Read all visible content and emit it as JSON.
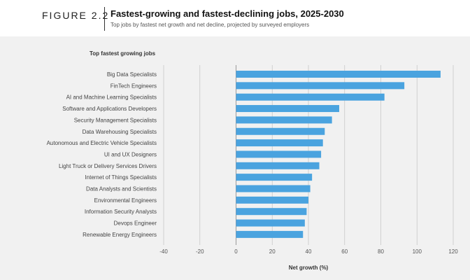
{
  "figure_label": "FIGURE 2.2",
  "title": "Fastest-growing and fastest-declining jobs, 2025-2030",
  "subtitle": "Top jobs by fastest net growth and net decline, projected by surveyed employers",
  "chart_data": {
    "type": "bar",
    "orientation": "horizontal",
    "panel_title": "Top fastest growing jobs",
    "xlabel": "Net growth (%)",
    "ylabel": "",
    "xlim": [
      -40,
      120
    ],
    "xticks": [
      -40,
      -20,
      0,
      20,
      40,
      60,
      80,
      100,
      120
    ],
    "grid": true,
    "bar_color": "#4aa3df",
    "categories": [
      "Big Data Specialists",
      "FinTech Engineers",
      "AI and Machine Learning Specialists",
      "Software and Applications Developers",
      "Security Management Specialists",
      "Data Warehousing Specialists",
      "Autonomous and Electric Vehicle Specialists",
      "UI and UX Designers",
      "Light Truck or Delivery Services Drivers",
      "Internet of Things Specialists",
      "Data Analysts and Scientists",
      "Environmental Engineers",
      "Information Security Analysts",
      "Devops Engineer",
      "Renewable Energy Engineers"
    ],
    "values": [
      113,
      93,
      82,
      57,
      53,
      49,
      48,
      47,
      46,
      42,
      41,
      40,
      39,
      38,
      37
    ]
  }
}
